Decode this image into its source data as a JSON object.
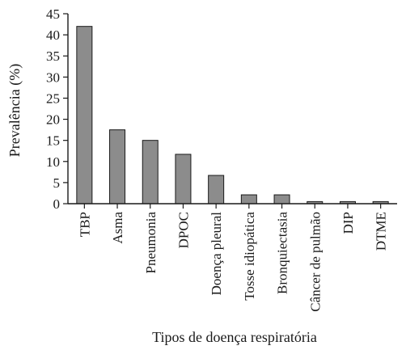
{
  "chart_data": {
    "type": "bar",
    "categories": [
      "TBP",
      "Asma",
      "Pneumonia",
      "DPOC",
      "Doença pleural",
      "Tosse idiopática",
      "Bronquiectasia",
      "Câncer de pulmão",
      "DIP",
      "DTME"
    ],
    "values": [
      42,
      17.5,
      15,
      11.7,
      6.7,
      2.1,
      2.1,
      0.5,
      0.5,
      0.5
    ],
    "xlabel": "Tipos de doença respiratória",
    "ylabel": "Prevalência (%)",
    "ylim": [
      0,
      45
    ],
    "yticks": [
      0,
      5,
      10,
      15,
      20,
      25,
      30,
      35,
      40,
      45
    ],
    "grid": false,
    "colors": {
      "bar_fill": "#8c8c8c",
      "bar_stroke": "#1a1a1a",
      "axis": "#1a1a1a"
    }
  }
}
